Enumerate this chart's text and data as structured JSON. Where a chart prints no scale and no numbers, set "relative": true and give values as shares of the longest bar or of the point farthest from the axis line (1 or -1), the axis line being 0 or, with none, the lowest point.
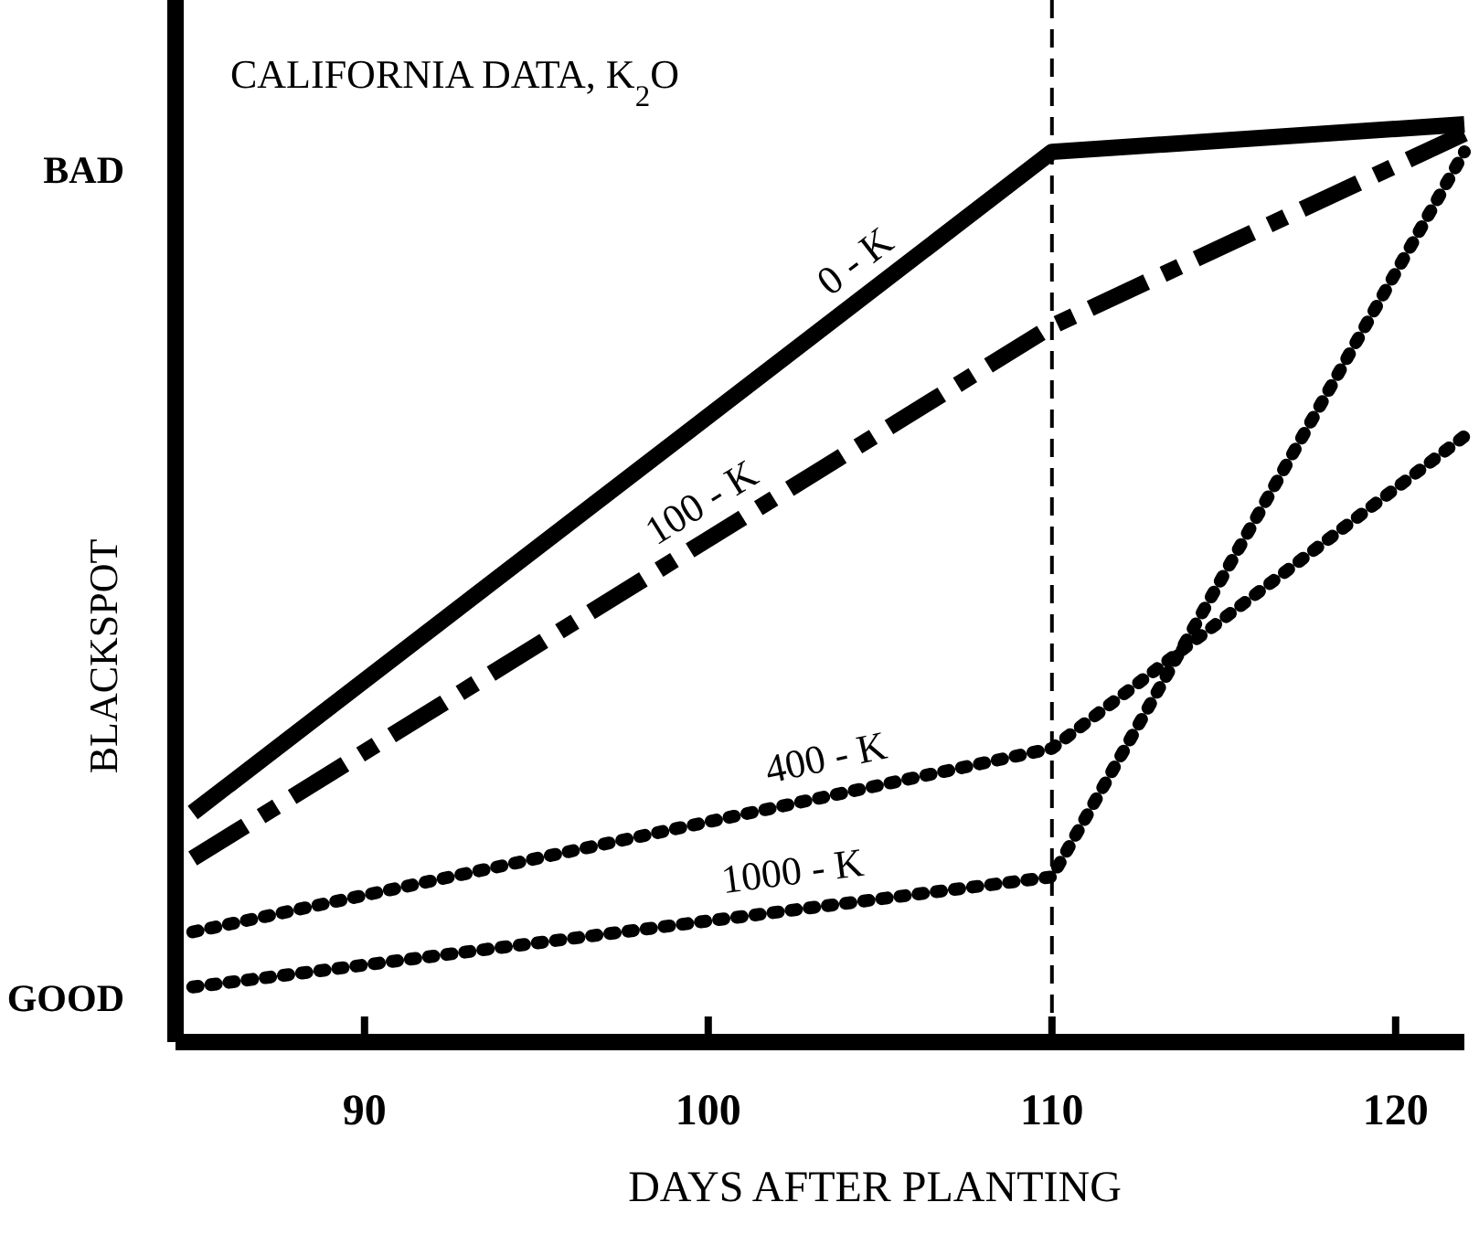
{
  "chart_data": {
    "type": "line",
    "relative": true,
    "title": "CALIFORNIA DATA, K$_{2}$O",
    "xlabel": "DAYS AFTER PLANTING",
    "ylabel": "BLACKSPOT",
    "annotations": [
      "BAD",
      "GOOD"
    ],
    "xlim": [
      84.5,
      122
    ],
    "xticks": [
      90,
      100,
      110,
      120
    ],
    "ref_lines": [
      {
        "axis": "x",
        "value": 110,
        "line_style": "dashed",
        "color": "#000000"
      }
    ],
    "series": [
      {
        "name": "0 - K",
        "color": "#000000",
        "line_style": "solid",
        "x": [
          85,
          110,
          122
        ],
        "values": [
          0.25,
          0.97,
          1
        ]
      },
      {
        "name": "100 - K",
        "color": "#000000",
        "line_style": "dashed",
        "x": [
          85,
          110,
          122
        ],
        "values": [
          0.2,
          0.78,
          0.99
        ]
      },
      {
        "name": "400 - K",
        "color": "#000000",
        "line_style": "dotted",
        "x": [
          85,
          110,
          122
        ],
        "values": [
          0.12,
          0.32,
          0.66
        ]
      },
      {
        "name": "1000 - K",
        "color": "#000000",
        "line_style": "dotted",
        "x": [
          85,
          110,
          122
        ],
        "values": [
          0.06,
          0.18,
          0.97
        ]
      }
    ]
  }
}
